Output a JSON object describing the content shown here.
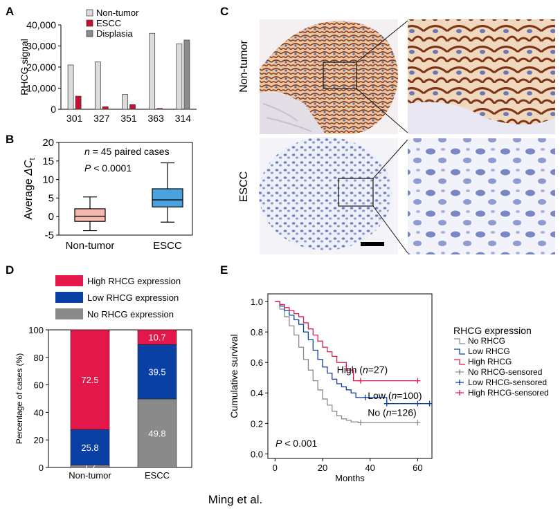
{
  "colors": {
    "nontumor_bar": "#dcdcdc",
    "escc_bar": "#c8102e",
    "displasia_bar": "#8c8c8c",
    "box_nontumor": "#f7b9ae",
    "box_escc": "#4aa3df",
    "high": "#e3174a",
    "low": "#0a3fa3",
    "no": "#8a8a8a",
    "ihc_brown": "#8b3a1d",
    "ihc_blue": "#9aa8d6"
  },
  "footer": {
    "credit": "Ming et al."
  },
  "panels": {
    "A": {
      "label": "A"
    },
    "B": {
      "label": "B"
    },
    "C": {
      "label": "C",
      "row1_label": "Non-tumor",
      "row2_label": "ESCC"
    },
    "D": {
      "label": "D"
    },
    "E": {
      "label": "E"
    }
  },
  "chart_data": [
    {
      "id": "A",
      "type": "bar",
      "ylabel": "RHCG signal",
      "ylim": [
        0,
        40000
      ],
      "yticks": [
        0,
        10000,
        20000,
        30000,
        40000
      ],
      "ytick_labels": [
        "0",
        "10,000",
        "20,000",
        "30,000",
        "40,000"
      ],
      "categories": [
        "301",
        "327",
        "351",
        "363",
        "314"
      ],
      "series": [
        {
          "name": "Non-tumor",
          "color_key": "nontumor_bar",
          "values": [
            21000,
            22500,
            7000,
            36000,
            31000
          ]
        },
        {
          "name": "ESCC",
          "color_key": "escc_bar",
          "values": [
            6200,
            1200,
            2200,
            400,
            null
          ]
        },
        {
          "name": "Displasia",
          "color_key": "displasia_bar",
          "values": [
            null,
            null,
            null,
            null,
            32800
          ]
        }
      ],
      "legend": [
        "Non-tumor",
        "ESCC",
        "Displasia"
      ]
    },
    {
      "id": "B",
      "type": "box",
      "ylabel_prefix": "Average ",
      "ylabel_delta": "Δ",
      "ylabel_var": "C",
      "ylabel_sub": "t",
      "ylim": [
        -5,
        20
      ],
      "yticks": [
        -5,
        0,
        5,
        10,
        15,
        20
      ],
      "ytick_labels": [
        "-5",
        "0",
        "5",
        "10",
        "15",
        "20"
      ],
      "annotation_n_var": "n",
      "annotation_n_rest": " = 45 paired cases",
      "annotation_p_var": "P",
      "annotation_p_rest": " < 0.0001",
      "categories": [
        "Non-tumor",
        "ESCC"
      ],
      "boxes": [
        {
          "name": "Non-tumor",
          "color_key": "box_nontumor",
          "min": -3.8,
          "q1": -1.3,
          "median": 0.1,
          "q3": 2.1,
          "max": 5.3
        },
        {
          "name": "ESCC",
          "color_key": "box_escc",
          "min": -1.5,
          "q1": 2.6,
          "median": 4.5,
          "q3": 7.5,
          "max": 14.5
        }
      ]
    },
    {
      "id": "D",
      "type": "bar",
      "stacked": true,
      "ylabel": "Percentage of cases (%)",
      "ylim": [
        0,
        100
      ],
      "yticks": [
        0,
        20,
        40,
        60,
        80,
        100
      ],
      "ytick_labels": [
        "0",
        "20",
        "40",
        "60",
        "80",
        "100"
      ],
      "categories": [
        "Non-tumor",
        "ESCC"
      ],
      "series": [
        {
          "name": "No RHCG expression",
          "color_key": "no",
          "values": [
            1.7,
            49.8
          ],
          "labels": [
            "1.7",
            "49.8"
          ]
        },
        {
          "name": "Low RHCG expression",
          "color_key": "low",
          "values": [
            25.8,
            39.5
          ],
          "labels": [
            "25.8",
            "39.5"
          ]
        },
        {
          "name": "High RHCG expression",
          "color_key": "high",
          "values": [
            72.5,
            10.7
          ],
          "labels": [
            "72.5",
            "10.7"
          ]
        }
      ],
      "legend": [
        "High RHCG expression",
        "Low RHCG expression",
        "No RHCG expression"
      ]
    },
    {
      "id": "E",
      "type": "line",
      "subtype": "kaplan-meier",
      "xlabel": "Months",
      "ylabel": "Cumulative survival",
      "xlim": [
        -3,
        66
      ],
      "ylim": [
        -0.03,
        1.05
      ],
      "xticks": [
        0,
        20,
        40,
        60
      ],
      "xtick_labels": [
        "0",
        "20",
        "40",
        "60"
      ],
      "yticks": [
        0.0,
        0.2,
        0.4,
        0.6,
        0.8,
        1.0
      ],
      "ytick_labels": [
        "0.0",
        "0.2",
        "0.4",
        "0.6",
        "0.8",
        "1.0"
      ],
      "p_var": "P",
      "p_rest": " < 0.001",
      "legend_title": "RHCG expression",
      "legend": [
        "No RHCG",
        "Low RHCG",
        "High RHCG",
        "No RHCG-sensored",
        "Low RHCG-sensored",
        "High RHCG-sensored"
      ],
      "series": [
        {
          "name": "High",
          "color_key": "high",
          "label_pre": "High (",
          "label_n": "n",
          "label_post": "=27)",
          "label_at": [
            26,
            0.53
          ],
          "x": [
            0,
            2,
            4,
            6,
            8,
            10,
            12,
            14,
            16,
            18,
            20,
            22,
            24,
            26,
            30,
            33,
            60
          ],
          "y": [
            1.0,
            0.98,
            0.96,
            0.94,
            0.92,
            0.9,
            0.86,
            0.82,
            0.78,
            0.74,
            0.7,
            0.67,
            0.64,
            0.6,
            0.55,
            0.48,
            0.48
          ],
          "censored": [
            [
              36,
              0.48
            ],
            [
              60,
              0.48
            ]
          ]
        },
        {
          "name": "Low",
          "color_key": "low",
          "label_pre": "Low (",
          "label_n": "n",
          "label_post": "=100)",
          "label_at": [
            39,
            0.36
          ],
          "x": [
            0,
            2,
            4,
            6,
            8,
            10,
            12,
            14,
            16,
            18,
            20,
            22,
            24,
            26,
            28,
            30,
            32,
            34,
            38,
            47,
            60,
            65
          ],
          "y": [
            1.0,
            0.97,
            0.94,
            0.91,
            0.88,
            0.85,
            0.8,
            0.75,
            0.68,
            0.62,
            0.57,
            0.53,
            0.49,
            0.46,
            0.44,
            0.42,
            0.4,
            0.37,
            0.37,
            0.33,
            0.33,
            0.33
          ],
          "censored": [
            [
              38,
              0.37
            ],
            [
              47,
              0.33
            ],
            [
              60,
              0.33
            ],
            [
              65,
              0.33
            ]
          ]
        },
        {
          "name": "No",
          "color_key": "no",
          "label_pre": "No (",
          "label_n": "n",
          "label_post": "=126)",
          "label_at": [
            39,
            0.25
          ],
          "x": [
            0,
            2,
            4,
            6,
            8,
            10,
            12,
            14,
            16,
            18,
            20,
            22,
            24,
            26,
            28,
            30,
            32,
            35,
            60
          ],
          "y": [
            1.0,
            0.95,
            0.9,
            0.84,
            0.78,
            0.7,
            0.62,
            0.55,
            0.48,
            0.42,
            0.36,
            0.32,
            0.28,
            0.25,
            0.23,
            0.22,
            0.21,
            0.205,
            0.205
          ],
          "censored": [
            [
              36,
              0.205
            ],
            [
              60,
              0.205
            ]
          ]
        }
      ]
    }
  ]
}
